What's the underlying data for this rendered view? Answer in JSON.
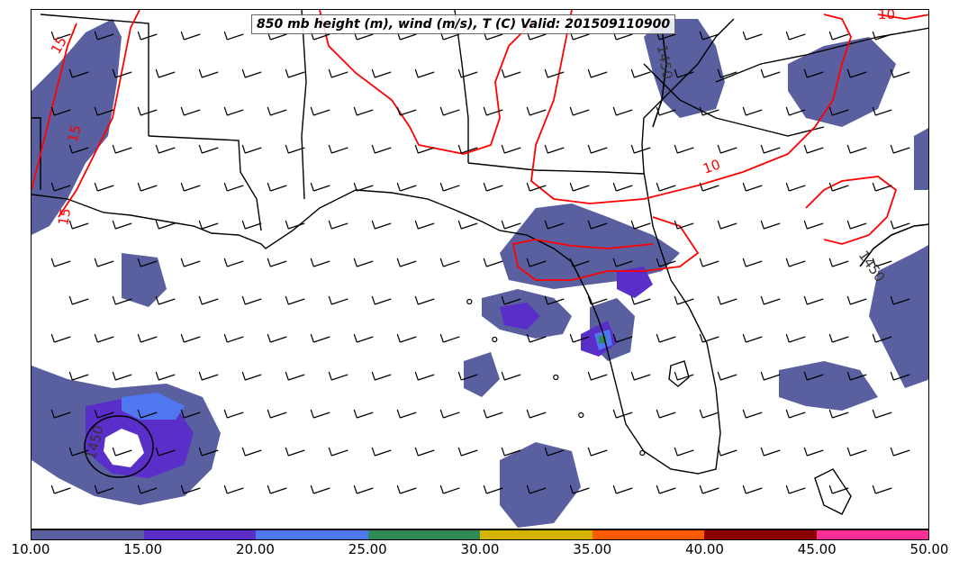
{
  "title": "850 mb height (m), wind (m/s), T (C) Valid: 201509110900",
  "colorbar": {
    "labels": [
      "10.00",
      "15.00",
      "20.00",
      "25.00",
      "30.00",
      "35.00",
      "40.00",
      "45.00",
      "50.00"
    ],
    "colors": [
      "#5a5fa0",
      "#5a2ec8",
      "#4f78f0",
      "#2e8b57",
      "#d4b400",
      "#ff5a00",
      "#8b0000",
      "#ff2d96"
    ]
  },
  "contour_labels": {
    "temp_15_a": "15",
    "temp_15_b": "15",
    "temp_15_c": "15",
    "temp_10_a": "10",
    "temp_10_b": "10",
    "height_1450_a": "1450",
    "height_1450_b": "1450",
    "height_1450_c": "1450"
  },
  "colors": {
    "temperature_contour": "#ff0000",
    "height_contour": "#000000",
    "land_border": "#000000"
  }
}
